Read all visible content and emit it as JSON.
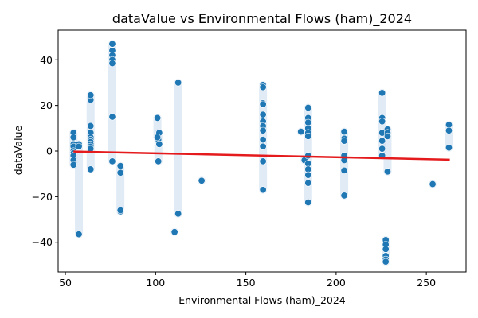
{
  "chart_data": {
    "type": "scatter",
    "title": "dataValue vs Environmental Flows (ham)_2024",
    "xlabel": "Environmental Flows (ham)_2024",
    "ylabel": "dataValue",
    "xlim": [
      46,
      272
    ],
    "ylim": [
      -53,
      53
    ],
    "x_ticks": [
      50,
      100,
      150,
      200,
      250
    ],
    "y_ticks": [
      -40,
      -20,
      0,
      20,
      40
    ],
    "grid": false,
    "colors": {
      "points": "#1f77b4",
      "trend": "#e41a1c",
      "band": "#c6dbef"
    },
    "trend_line": {
      "x": [
        54.5,
        263
      ],
      "y": [
        -0.2,
        -3.8
      ]
    },
    "series": [
      {
        "x": [
          54.5,
          54.5,
          54.5,
          54.5,
          54.5,
          54.5,
          54.5,
          54.5,
          54.5,
          57.5,
          57.5,
          57.5,
          64,
          64,
          64,
          64,
          64,
          64,
          64,
          64,
          64,
          64,
          64,
          76,
          76,
          76,
          76,
          76,
          76,
          76,
          80.5,
          80.5,
          80.5,
          80.5,
          101,
          101.5,
          102,
          101,
          102,
          101.5,
          110.5,
          112.5,
          112.5,
          125.5,
          159.5,
          159.5,
          159.5,
          159.5,
          159.5,
          159.5,
          159.5,
          159.5,
          159.5,
          159.5,
          159.5,
          159.5,
          180.5,
          182.5,
          182.5,
          184.5,
          184.5,
          184.5,
          184.5,
          184.5,
          184.5,
          184.5,
          184.5,
          184.5,
          184.5,
          184.5,
          184.5,
          204.5,
          204.5,
          204.5,
          204.5,
          204.5,
          204.5,
          204.5,
          225.5,
          225.5,
          225.5,
          225.5,
          225.5,
          225.5,
          225.5,
          227.5,
          227.5,
          227.5,
          227.5,
          227.5,
          227.5,
          228.5,
          228.5,
          228.5,
          228.5,
          253.5,
          262.5,
          262.5,
          262.5
        ],
        "y": [
          8,
          6,
          3,
          2,
          0,
          -1,
          -2,
          -4,
          -6,
          3,
          2,
          -36.5,
          11,
          8,
          6,
          5,
          4,
          3,
          2,
          1,
          -8,
          22.5,
          24.5,
          47,
          44,
          42,
          40,
          38.5,
          15,
          -4.5,
          -6.5,
          -9.5,
          -26.5,
          -26,
          14.5,
          5,
          8,
          6,
          3,
          -4.5,
          -35.5,
          30,
          -27.5,
          -13,
          29,
          28,
          21,
          20.5,
          16,
          13,
          11,
          9,
          5,
          2,
          -4.5,
          -17,
          8.5,
          -3.5,
          -4,
          19,
          14.5,
          12.5,
          10,
          8,
          6.5,
          -2,
          -5.5,
          -8,
          -10.5,
          -14,
          -22.5,
          8.5,
          5.5,
          4.5,
          -2,
          -4,
          -8.5,
          -19.5,
          25.5,
          14.5,
          13,
          8,
          4.5,
          1,
          -2,
          -39,
          -41,
          -43,
          -46,
          -47.5,
          -48.5,
          9.5,
          8,
          6.5,
          -9,
          -14.5,
          11.5,
          9,
          1.5
        ]
      }
    ]
  }
}
